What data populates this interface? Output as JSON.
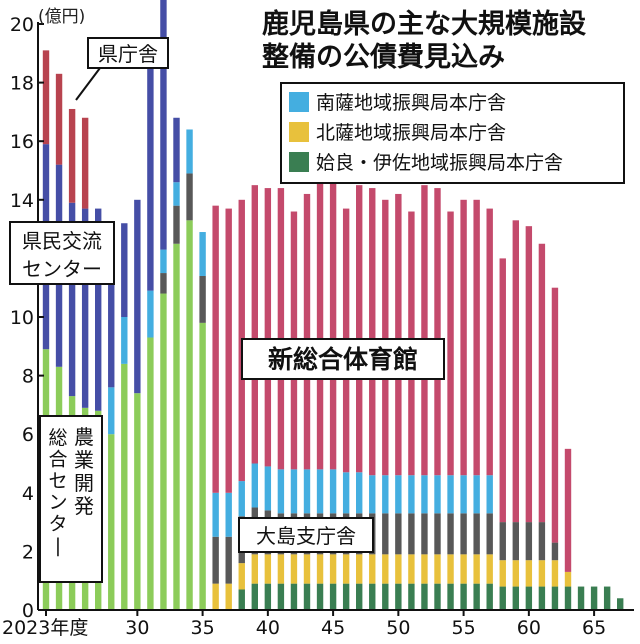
{
  "title_lines": [
    "鹿児島県の主な大規模施設",
    "整備の公債費見込み"
  ],
  "unit_label": "(億円)",
  "x_first_tick_suffix": "年度",
  "colors": {
    "kencho": "#b8434f",
    "kenmin": "#454ea6",
    "nogyo": "#8ccc5a",
    "sogotai": "#c44a6c",
    "oshima": "#585858",
    "nansatsu": "#44aee0",
    "hokusatsu": "#e8c13c",
    "aira": "#3a7e52"
  },
  "chart_data": {
    "type": "bar",
    "stacked": true,
    "x": [
      2023,
      2024,
      2025,
      2026,
      2027,
      2028,
      2029,
      2030,
      2031,
      2032,
      2033,
      2034,
      2035,
      2036,
      2037,
      2038,
      2039,
      2040,
      2041,
      2042,
      2043,
      2044,
      2045,
      2046,
      2047,
      2048,
      2049,
      2050,
      2051,
      2052,
      2053,
      2054,
      2055,
      2056,
      2057,
      2058,
      2059,
      2060,
      2061,
      2062,
      2063,
      2064,
      2065,
      2066,
      2067
    ],
    "x_tick_values": [
      2023,
      2030,
      2035,
      2040,
      2045,
      2050,
      2055,
      2060,
      2065
    ],
    "x_tick_labels": [
      "2023",
      "30",
      "35",
      "40",
      "45",
      "50",
      "55",
      "60",
      "65"
    ],
    "ylim": [
      0,
      20
    ],
    "yticks": [
      0,
      2,
      4,
      6,
      8,
      10,
      12,
      14,
      16,
      18,
      20
    ],
    "ylabel": "(億円)",
    "grid": false,
    "series": [
      {
        "key": "nogyo",
        "label": "農業開発総合センター",
        "values": [
          8.9,
          8.3,
          7.3,
          6.9,
          6.8,
          6.0,
          8.4,
          7.4,
          9.3,
          10.8,
          12.5,
          13.3,
          9.8,
          0,
          0,
          0,
          0,
          0,
          0,
          0,
          0,
          0,
          0,
          0,
          0,
          0,
          0,
          0,
          0,
          0,
          0,
          0,
          0,
          0,
          0,
          0,
          0,
          0,
          0,
          0,
          0,
          0,
          0,
          0,
          0
        ]
      },
      {
        "key": "aira",
        "label": "姶良・伊佐地域振興局本庁舎",
        "values": [
          0,
          0,
          0,
          0,
          0,
          0,
          0,
          0,
          0,
          0,
          0,
          0,
          0,
          0,
          0,
          0.7,
          0.9,
          0.9,
          0.9,
          0.9,
          0.9,
          0.9,
          0.9,
          0.9,
          0.9,
          0.9,
          0.9,
          0.9,
          0.9,
          0.9,
          0.9,
          0.9,
          0.9,
          0.9,
          0.9,
          0.8,
          0.8,
          0.8,
          0.8,
          0.8,
          0.8,
          0.8,
          0.8,
          0.8,
          0.4
        ]
      },
      {
        "key": "hokusatsu",
        "label": "北薩地域振興局本庁舎",
        "values": [
          0,
          0,
          0,
          0,
          0,
          0,
          0,
          0,
          0,
          0,
          0,
          0,
          0,
          0.9,
          0.9,
          0.9,
          1.0,
          1.0,
          1.0,
          1.0,
          1.0,
          1.0,
          1.0,
          1.0,
          1.0,
          1.0,
          1.0,
          1.0,
          1.0,
          1.0,
          1.0,
          1.0,
          1.0,
          1.0,
          1.0,
          0.9,
          0.9,
          0.9,
          0.9,
          0.9,
          0.5,
          0,
          0,
          0,
          0
        ]
      },
      {
        "key": "oshima",
        "label": "大島支庁舎",
        "values": [
          0,
          0,
          0,
          0,
          0,
          0,
          0,
          0,
          0,
          0.7,
          1.3,
          1.6,
          1.6,
          1.6,
          1.6,
          1.6,
          1.6,
          1.5,
          1.4,
          1.4,
          1.4,
          1.4,
          1.4,
          1.4,
          1.4,
          1.4,
          1.4,
          1.4,
          1.4,
          1.4,
          1.4,
          1.4,
          1.4,
          1.4,
          1.4,
          1.3,
          1.3,
          1.3,
          1.3,
          0.6,
          0,
          0,
          0,
          0,
          0
        ]
      },
      {
        "key": "nansatsu",
        "label": "南薩地域振興局本庁舎",
        "values": [
          0,
          0,
          0,
          0,
          0,
          1.6,
          1.6,
          0,
          1.6,
          0.8,
          0.8,
          1.5,
          1.5,
          1.5,
          1.5,
          1.2,
          1.5,
          1.5,
          1.5,
          1.5,
          1.5,
          1.5,
          1.5,
          1.4,
          1.4,
          1.3,
          1.3,
          1.3,
          1.3,
          1.3,
          1.3,
          1.3,
          1.3,
          1.3,
          1.3,
          0,
          0,
          0,
          0,
          0,
          0,
          0,
          0,
          0,
          0
        ]
      },
      {
        "key": "kenmin",
        "label": "県民交流センター",
        "values": [
          7.0,
          6.9,
          6.6,
          6.8,
          6.9,
          5.1,
          3.2,
          6.6,
          7.7,
          8.6,
          2.2,
          0,
          0,
          0,
          0,
          0,
          0,
          0,
          0,
          0,
          0,
          0,
          0,
          0,
          0,
          0,
          0,
          0,
          0,
          0,
          0,
          0,
          0,
          0,
          0,
          0,
          0,
          0,
          0,
          0,
          0,
          0,
          0,
          0,
          0
        ]
      },
      {
        "key": "sogotai",
        "label": "新総合体育館",
        "values": [
          0,
          0,
          0,
          0,
          0,
          0,
          0,
          0,
          0,
          0,
          0,
          0,
          0,
          9.8,
          9.7,
          9.6,
          9.5,
          9.5,
          9.6,
          8.8,
          9.4,
          9.9,
          10.2,
          9.0,
          9.8,
          9.8,
          9.4,
          9.6,
          9.0,
          9.9,
          9.8,
          9.0,
          9.4,
          9.4,
          9.1,
          9.0,
          10.3,
          10.1,
          9.5,
          8.7,
          4.2,
          0,
          0,
          0,
          0
        ]
      },
      {
        "key": "kencho",
        "label": "県庁舎",
        "values": [
          3.2,
          3.1,
          3.2,
          3.1,
          0,
          0,
          0,
          0,
          0,
          0,
          0,
          0,
          0,
          0,
          0,
          0,
          0,
          0,
          0,
          0,
          0,
          0,
          0,
          0,
          0,
          0,
          0,
          0,
          0,
          0,
          0,
          0,
          0,
          0,
          0,
          0,
          0,
          0,
          0,
          0,
          0,
          0,
          0,
          0,
          0
        ]
      }
    ],
    "legend": {
      "placement": "top-right",
      "entries": [
        {
          "key": "nansatsu",
          "label": "南薩地域振興局本庁舎"
        },
        {
          "key": "hokusatsu",
          "label": "北薩地域振興局本庁舎"
        },
        {
          "key": "aira",
          "label": "姶良・伊佐地域振興局本庁舎"
        }
      ]
    },
    "annotations": [
      {
        "key": "kencho",
        "lines": [
          "県庁舎"
        ]
      },
      {
        "key": "kenmin",
        "lines": [
          "県民交流",
          "センター"
        ]
      },
      {
        "key": "nogyo",
        "lines": [
          "農業",
          "開発"
        ],
        "vertical_lines": [
          "総合センター"
        ]
      },
      {
        "key": "sogotai",
        "lines": [
          "新総合体育館"
        ]
      },
      {
        "key": "oshima",
        "lines": [
          "大島支庁舎"
        ]
      }
    ]
  }
}
